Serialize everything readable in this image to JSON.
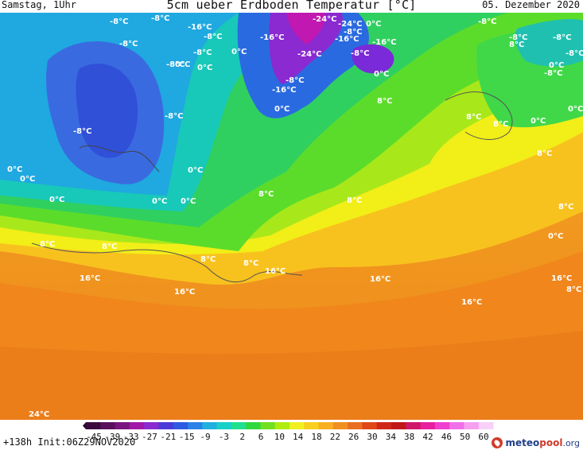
{
  "header": {
    "time_label": "Samstag, 1Uhr",
    "title": "5cm ueber Erdboden Temperatur [°C]",
    "date_label": "05. Dezember 2020"
  },
  "footer": {
    "run_info": "+138h Init:06Z29NOV2020",
    "logo_text_a": "meteo",
    "logo_text_b": "pool",
    "logo_text_c": ".org"
  },
  "colorbar": {
    "ticks": [
      "-45",
      "-39",
      "-33",
      "-27",
      "-21",
      "-15",
      "-9",
      "-3",
      "2",
      "6",
      "10",
      "14",
      "18",
      "22",
      "26",
      "30",
      "34",
      "38",
      "42",
      "46",
      "50",
      "60"
    ],
    "colors": [
      "#3a0a3e",
      "#5a0f5c",
      "#7a1480",
      "#a018a8",
      "#8a2ad0",
      "#4a3ad8",
      "#2c5ae0",
      "#2a82e8",
      "#20b0e0",
      "#18d0c8",
      "#20e090",
      "#30d840",
      "#70e020",
      "#b0ec10",
      "#f0f020",
      "#f8d020",
      "#f8b020",
      "#f09020",
      "#e87020",
      "#e04818",
      "#d02818",
      "#c01818",
      "#d01868",
      "#e820a0",
      "#f040d0",
      "#f070e8",
      "#f8a0f0",
      "#f8d0f8"
    ]
  },
  "map": {
    "labels": [
      {
        "t": "-8°C"
      },
      {
        "t": "-16°C"
      },
      {
        "t": "-8°C"
      },
      {
        "t": "-8°C"
      },
      {
        "t": "-8°C"
      },
      {
        "t": "0°C"
      },
      {
        "t": "-8°C"
      },
      {
        "t": "-16°C"
      },
      {
        "t": "0°C"
      },
      {
        "t": "-8°C"
      },
      {
        "t": "-24°C"
      },
      {
        "t": "-24°C"
      },
      {
        "t": "-8°C"
      },
      {
        "t": "0°C"
      },
      {
        "t": "-16°C"
      },
      {
        "t": "-16°C"
      },
      {
        "t": "-24°C"
      },
      {
        "t": "-8°C"
      },
      {
        "t": "0°C"
      },
      {
        "t": "-8°C"
      },
      {
        "t": "-16°C"
      },
      {
        "t": "0°C"
      },
      {
        "t": "8°C"
      },
      {
        "t": "-8°C"
      },
      {
        "t": "-8°C"
      },
      {
        "t": "-8°C"
      },
      {
        "t": "8°C"
      },
      {
        "t": "-8°C"
      },
      {
        "t": "0°C"
      },
      {
        "t": "-8°C"
      },
      {
        "t": "8°C"
      },
      {
        "t": "8°C"
      },
      {
        "t": "0°C"
      },
      {
        "t": "0°C"
      },
      {
        "t": "8°C"
      },
      {
        "t": "0°C"
      },
      {
        "t": "-8°C"
      },
      {
        "t": "-8°C"
      },
      {
        "t": "0°C"
      },
      {
        "t": "0°C"
      },
      {
        "t": "0°C"
      },
      {
        "t": "0°C"
      },
      {
        "t": "0°C"
      },
      {
        "t": "0°C"
      },
      {
        "t": "8°C"
      },
      {
        "t": "8°C"
      },
      {
        "t": "8°C"
      },
      {
        "t": "0°C"
      },
      {
        "t": "8°C"
      },
      {
        "t": "8°C"
      },
      {
        "t": "8°C"
      },
      {
        "t": "8°C"
      },
      {
        "t": "16°C"
      },
      {
        "t": "16°C"
      },
      {
        "t": "16°C"
      },
      {
        "t": "16°C"
      },
      {
        "t": "16°C"
      },
      {
        "t": "16°C"
      },
      {
        "t": "8°C"
      },
      {
        "t": "24°C"
      }
    ]
  }
}
